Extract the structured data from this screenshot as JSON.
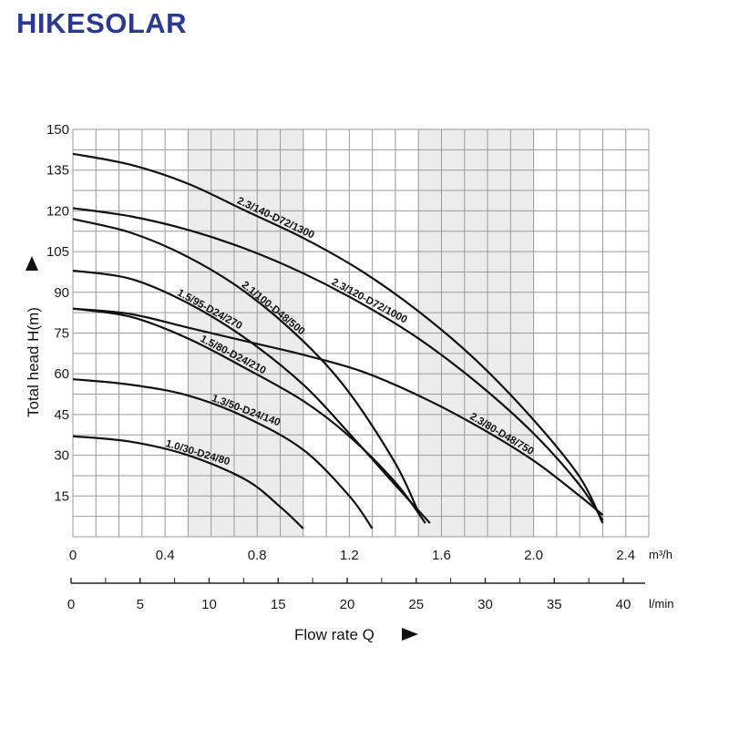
{
  "brand": "HIKESOLAR",
  "chart_data": {
    "type": "line",
    "title": "",
    "ylabel": "Total head H(m)",
    "xlabel": "Flow rate Q",
    "ylim": [
      0,
      150
    ],
    "xlim_m3h": [
      0,
      2.5
    ],
    "y_ticks": [
      "15",
      "30",
      "45",
      "60",
      "75",
      "90",
      "105",
      "120",
      "135",
      "150"
    ],
    "x_ticks_m3h": [
      "0",
      "0.4",
      "0.8",
      "1.2",
      "1.6",
      "2.0",
      "2.4"
    ],
    "x_unit_m3h": "m³/h",
    "x_ticks_lmin": [
      "0",
      "5",
      "10",
      "15",
      "20",
      "25",
      "30",
      "35",
      "40"
    ],
    "x_unit_lmin": "l/min",
    "grid": true,
    "shaded_bands_m3h": [
      [
        0.5,
        1.0
      ],
      [
        1.5,
        2.0
      ]
    ],
    "series": [
      {
        "name": "2.3/140-D72/1300",
        "points": [
          [
            0,
            141
          ],
          [
            0.25,
            137
          ],
          [
            0.5,
            130
          ],
          [
            0.75,
            120
          ],
          [
            1.0,
            110
          ],
          [
            1.25,
            98
          ],
          [
            1.5,
            83
          ],
          [
            1.75,
            65
          ],
          [
            2.0,
            43
          ],
          [
            2.2,
            22
          ],
          [
            2.3,
            5
          ]
        ],
        "label_at": 0.71
      },
      {
        "name": "2.3/120-D72/1000",
        "points": [
          [
            0,
            121
          ],
          [
            0.25,
            118
          ],
          [
            0.5,
            113
          ],
          [
            0.75,
            106
          ],
          [
            1.0,
            97
          ],
          [
            1.25,
            86
          ],
          [
            1.5,
            73
          ],
          [
            1.75,
            57
          ],
          [
            2.0,
            38
          ],
          [
            2.2,
            19
          ],
          [
            2.3,
            6
          ]
        ],
        "label_at": 1.12
      },
      {
        "name": "2.1/100-D48/500",
        "points": [
          [
            0,
            117
          ],
          [
            0.25,
            112
          ],
          [
            0.5,
            103
          ],
          [
            0.75,
            90
          ],
          [
            1.0,
            72
          ],
          [
            1.2,
            53
          ],
          [
            1.4,
            27
          ],
          [
            1.5,
            9
          ]
        ],
        "label_at": 0.73
      },
      {
        "name": "1.5/95-D24/270",
        "points": [
          [
            0,
            98
          ],
          [
            0.25,
            95
          ],
          [
            0.5,
            86
          ],
          [
            0.75,
            73
          ],
          [
            1.0,
            56
          ],
          [
            1.2,
            38
          ],
          [
            1.4,
            19
          ],
          [
            1.55,
            5
          ]
        ],
        "label_at": 0.45
      },
      {
        "name": "2.3/80-D48/750",
        "points": [
          [
            0,
            84
          ],
          [
            0.25,
            82
          ],
          [
            0.5,
            77
          ],
          [
            0.75,
            72
          ],
          [
            1.0,
            67
          ],
          [
            1.25,
            61
          ],
          [
            1.5,
            52
          ],
          [
            1.75,
            41
          ],
          [
            2.0,
            28
          ],
          [
            2.2,
            15
          ],
          [
            2.3,
            8
          ]
        ],
        "label_at": 1.72
      },
      {
        "name": "1.5/80-D24/210",
        "points": [
          [
            0,
            84
          ],
          [
            0.25,
            81
          ],
          [
            0.5,
            73
          ],
          [
            0.75,
            62
          ],
          [
            1.0,
            50
          ],
          [
            1.2,
            37
          ],
          [
            1.4,
            20
          ],
          [
            1.53,
            5
          ]
        ],
        "label_at": 0.55
      },
      {
        "name": "1.3/50-D24/140",
        "points": [
          [
            0,
            58
          ],
          [
            0.25,
            56
          ],
          [
            0.5,
            52
          ],
          [
            0.75,
            44
          ],
          [
            1.0,
            32
          ],
          [
            1.2,
            15
          ],
          [
            1.3,
            3
          ]
        ],
        "label_at": 0.6
      },
      {
        "name": "1.0/30-D24/80",
        "points": [
          [
            0,
            37
          ],
          [
            0.25,
            35
          ],
          [
            0.5,
            30
          ],
          [
            0.75,
            21
          ],
          [
            0.9,
            11
          ],
          [
            1.0,
            3
          ]
        ],
        "label_at": 0.4
      }
    ]
  }
}
